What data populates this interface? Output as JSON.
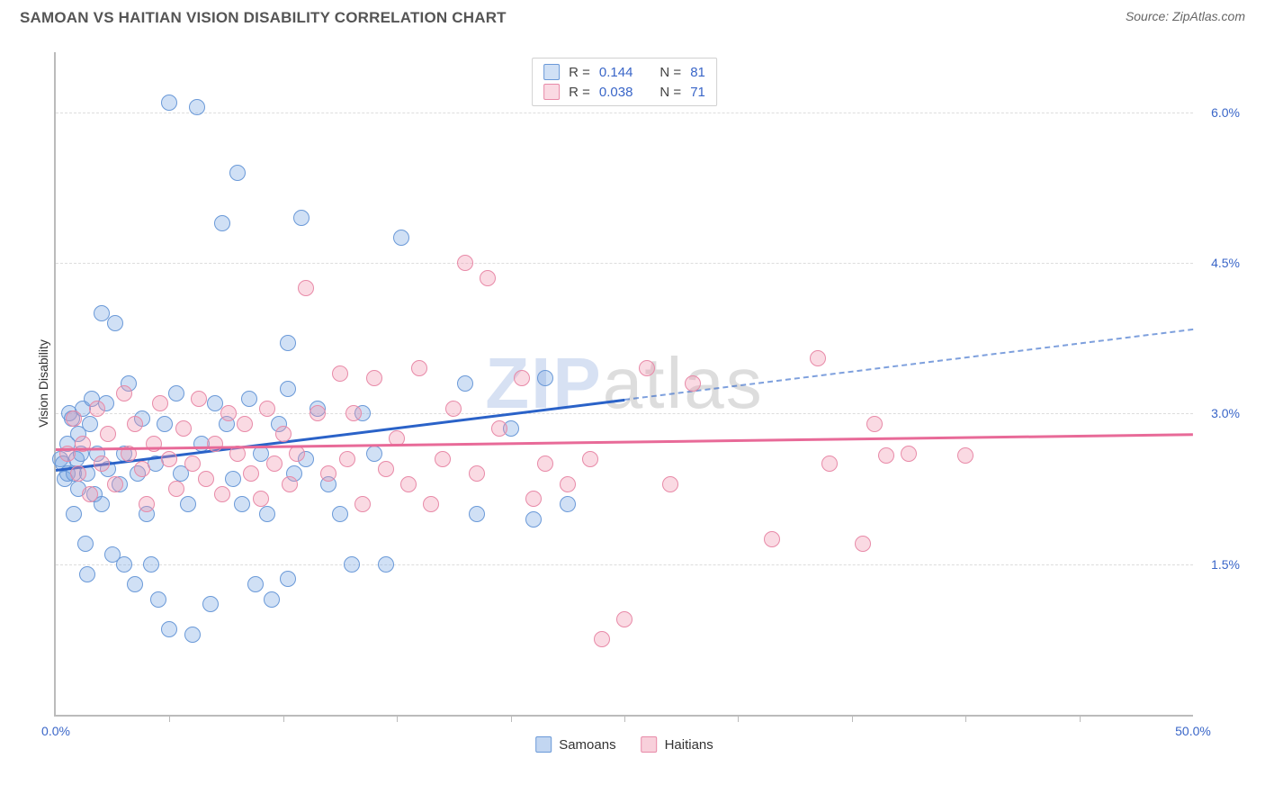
{
  "title": "SAMOAN VS HAITIAN VISION DISABILITY CORRELATION CHART",
  "source_label": "Source: ZipAtlas.com",
  "watermark": {
    "part1": "ZIP",
    "part2": "atlas"
  },
  "chart": {
    "type": "scatter",
    "ylabel": "Vision Disability",
    "xlim": [
      0,
      50
    ],
    "ylim": [
      0,
      6.6
    ],
    "x_ticks_minor": [
      5,
      10,
      15,
      20,
      25,
      30,
      35,
      40,
      45
    ],
    "x_tick_labels": [
      {
        "v": 0,
        "label": "0.0%"
      },
      {
        "v": 50,
        "label": "50.0%"
      }
    ],
    "y_grid": [
      1.5,
      3.0,
      4.5,
      6.0
    ],
    "y_tick_labels": [
      {
        "v": 1.5,
        "label": "1.5%"
      },
      {
        "v": 3.0,
        "label": "3.0%"
      },
      {
        "v": 4.5,
        "label": "4.5%"
      },
      {
        "v": 6.0,
        "label": "6.0%"
      }
    ],
    "background_color": "#ffffff",
    "grid_color": "#dddddd",
    "axis_color": "#bbbbbb",
    "series": [
      {
        "name": "Samoans",
        "fill": "rgba(120,165,225,0.35)",
        "stroke": "#6a99d8",
        "trend_color": "#2a62c8",
        "r_label": "R =",
        "r_value": "0.144",
        "n_label": "N =",
        "n_value": "81",
        "trend": {
          "x1": 0,
          "y1": 2.45,
          "x2": 25,
          "y2": 3.15,
          "x2_dash": 50,
          "y2_dash": 3.85
        },
        "points": [
          [
            0.2,
            2.55
          ],
          [
            0.3,
            2.5
          ],
          [
            0.4,
            2.35
          ],
          [
            0.5,
            2.7
          ],
          [
            0.5,
            2.4
          ],
          [
            0.6,
            3.0
          ],
          [
            0.7,
            2.95
          ],
          [
            0.8,
            2.4
          ],
          [
            0.8,
            2.0
          ],
          [
            0.9,
            2.55
          ],
          [
            1.0,
            2.8
          ],
          [
            1.0,
            2.25
          ],
          [
            1.1,
            2.6
          ],
          [
            1.2,
            3.05
          ],
          [
            1.3,
            1.7
          ],
          [
            1.4,
            2.4
          ],
          [
            1.4,
            1.4
          ],
          [
            1.5,
            2.9
          ],
          [
            1.6,
            3.15
          ],
          [
            1.7,
            2.2
          ],
          [
            1.8,
            2.6
          ],
          [
            2.0,
            4.0
          ],
          [
            2.0,
            2.1
          ],
          [
            2.2,
            3.1
          ],
          [
            2.3,
            2.45
          ],
          [
            2.5,
            1.6
          ],
          [
            2.6,
            3.9
          ],
          [
            2.8,
            2.3
          ],
          [
            3.0,
            1.5
          ],
          [
            3.0,
            2.6
          ],
          [
            3.2,
            3.3
          ],
          [
            3.5,
            1.3
          ],
          [
            3.6,
            2.4
          ],
          [
            3.8,
            2.95
          ],
          [
            4.0,
            2.0
          ],
          [
            4.2,
            1.5
          ],
          [
            4.4,
            2.5
          ],
          [
            4.5,
            1.15
          ],
          [
            4.8,
            2.9
          ],
          [
            5.0,
            0.85
          ],
          [
            5.0,
            6.1
          ],
          [
            5.3,
            3.2
          ],
          [
            5.5,
            2.4
          ],
          [
            5.8,
            2.1
          ],
          [
            6.0,
            0.8
          ],
          [
            6.2,
            6.05
          ],
          [
            6.4,
            2.7
          ],
          [
            6.8,
            1.1
          ],
          [
            7.0,
            3.1
          ],
          [
            7.3,
            4.9
          ],
          [
            7.5,
            2.9
          ],
          [
            7.8,
            2.35
          ],
          [
            8.0,
            5.4
          ],
          [
            8.2,
            2.1
          ],
          [
            8.5,
            3.15
          ],
          [
            8.8,
            1.3
          ],
          [
            9.0,
            2.6
          ],
          [
            9.3,
            2.0
          ],
          [
            9.5,
            1.15
          ],
          [
            9.8,
            2.9
          ],
          [
            10.2,
            3.7
          ],
          [
            10.2,
            1.35
          ],
          [
            10.2,
            3.25
          ],
          [
            10.5,
            2.4
          ],
          [
            10.8,
            4.95
          ],
          [
            11.0,
            2.55
          ],
          [
            11.5,
            3.05
          ],
          [
            12.0,
            2.3
          ],
          [
            12.5,
            2.0
          ],
          [
            13.0,
            1.5
          ],
          [
            13.5,
            3.0
          ],
          [
            14.0,
            2.6
          ],
          [
            14.5,
            1.5
          ],
          [
            15.2,
            4.75
          ],
          [
            18.0,
            3.3
          ],
          [
            18.5,
            2.0
          ],
          [
            20.0,
            2.85
          ],
          [
            21.0,
            1.95
          ],
          [
            22.5,
            2.1
          ],
          [
            21.5,
            3.35
          ]
        ]
      },
      {
        "name": "Haitians",
        "fill": "rgba(240,150,175,0.35)",
        "stroke": "#e88aa8",
        "trend_color": "#e86a98",
        "r_label": "R =",
        "r_value": "0.038",
        "n_label": "N =",
        "n_value": "71",
        "trend": {
          "x1": 0,
          "y1": 2.65,
          "x2": 50,
          "y2": 2.8
        },
        "points": [
          [
            0.5,
            2.6
          ],
          [
            0.8,
            2.95
          ],
          [
            1.0,
            2.4
          ],
          [
            1.2,
            2.7
          ],
          [
            1.5,
            2.2
          ],
          [
            1.8,
            3.05
          ],
          [
            2.0,
            2.5
          ],
          [
            2.3,
            2.8
          ],
          [
            2.6,
            2.3
          ],
          [
            3.0,
            3.2
          ],
          [
            3.2,
            2.6
          ],
          [
            3.5,
            2.9
          ],
          [
            3.8,
            2.45
          ],
          [
            4.0,
            2.1
          ],
          [
            4.3,
            2.7
          ],
          [
            4.6,
            3.1
          ],
          [
            5.0,
            2.55
          ],
          [
            5.3,
            2.25
          ],
          [
            5.6,
            2.85
          ],
          [
            6.0,
            2.5
          ],
          [
            6.3,
            3.15
          ],
          [
            6.6,
            2.35
          ],
          [
            7.0,
            2.7
          ],
          [
            7.3,
            2.2
          ],
          [
            7.6,
            3.0
          ],
          [
            8.0,
            2.6
          ],
          [
            8.3,
            2.9
          ],
          [
            8.6,
            2.4
          ],
          [
            9.0,
            2.15
          ],
          [
            9.3,
            3.05
          ],
          [
            9.6,
            2.5
          ],
          [
            10.0,
            2.8
          ],
          [
            10.3,
            2.3
          ],
          [
            10.6,
            2.6
          ],
          [
            11.0,
            4.25
          ],
          [
            11.5,
            3.0
          ],
          [
            12.0,
            2.4
          ],
          [
            12.5,
            3.4
          ],
          [
            12.8,
            2.55
          ],
          [
            13.1,
            3.0
          ],
          [
            13.5,
            2.1
          ],
          [
            14.0,
            3.35
          ],
          [
            14.5,
            2.45
          ],
          [
            15.0,
            2.75
          ],
          [
            15.5,
            2.3
          ],
          [
            16.0,
            3.45
          ],
          [
            16.5,
            2.1
          ],
          [
            17.0,
            2.55
          ],
          [
            17.5,
            3.05
          ],
          [
            18.0,
            4.5
          ],
          [
            18.5,
            2.4
          ],
          [
            19.0,
            4.35
          ],
          [
            19.5,
            2.85
          ],
          [
            20.5,
            3.35
          ],
          [
            21.0,
            2.15
          ],
          [
            21.5,
            2.5
          ],
          [
            22.5,
            2.3
          ],
          [
            25.0,
            0.95
          ],
          [
            26.0,
            3.45
          ],
          [
            27.0,
            2.3
          ],
          [
            28.0,
            3.3
          ],
          [
            31.5,
            1.75
          ],
          [
            33.5,
            3.55
          ],
          [
            35.5,
            1.7
          ],
          [
            36.0,
            2.9
          ],
          [
            36.5,
            2.58
          ],
          [
            37.5,
            2.6
          ],
          [
            40.0,
            2.58
          ],
          [
            34.0,
            2.5
          ],
          [
            24.0,
            0.75
          ],
          [
            23.5,
            2.55
          ]
        ]
      }
    ],
    "legend_bottom": [
      {
        "label": "Samoans",
        "fill": "rgba(120,165,225,0.45)",
        "stroke": "#6a99d8"
      },
      {
        "label": "Haitians",
        "fill": "rgba(240,150,175,0.45)",
        "stroke": "#e88aa8"
      }
    ]
  }
}
